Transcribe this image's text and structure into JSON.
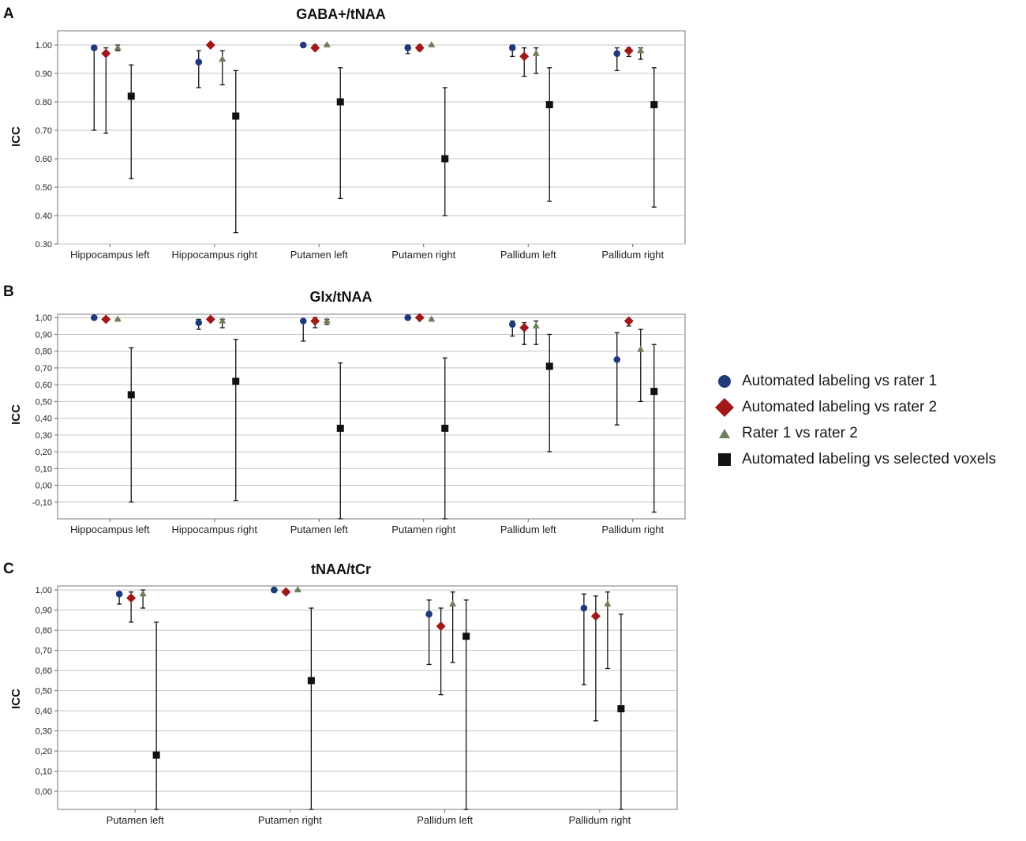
{
  "series_styles": [
    {
      "marker": "circle",
      "color": "#1f3a7a"
    },
    {
      "marker": "diamond",
      "color": "#a01818"
    },
    {
      "marker": "triangle",
      "color": "#6e8059"
    },
    {
      "marker": "square",
      "color": "#111111"
    }
  ],
  "legend": {
    "placement": "right",
    "items": [
      "Automated labeling vs rater 1",
      "Automated labeling vs rater 2",
      "Rater 1 vs rater 2",
      "Automated labeling vs selected voxels"
    ]
  },
  "chart_data": [
    {
      "panel_label": "A",
      "type": "scatter",
      "title": "GABA+/tNAA",
      "ylabel": "ICC",
      "ylim": [
        0.3,
        1.05
      ],
      "yticks": [
        "0.30",
        "0.40",
        "0.50",
        "0.60",
        "0.70",
        "0.80",
        "0.90",
        "1.00"
      ],
      "ytick_values": [
        0.3,
        0.4,
        0.5,
        0.6,
        0.7,
        0.8,
        0.9,
        1.0
      ],
      "grid": true,
      "categories": [
        "Hippocampus left",
        "Hippocampus right",
        "Putamen left",
        "Putamen right",
        "Pallidum left",
        "Pallidum right"
      ],
      "series": [
        {
          "values": [
            0.99,
            0.94,
            1.0,
            0.99,
            0.99,
            0.97
          ],
          "low": [
            0.7,
            0.85,
            1.0,
            0.97,
            0.96,
            0.91
          ],
          "high": [
            0.99,
            0.98,
            1.0,
            1.0,
            1.0,
            0.99
          ]
        },
        {
          "values": [
            0.97,
            1.0,
            0.99,
            0.99,
            0.96,
            0.98
          ],
          "low": [
            0.69,
            1.0,
            0.99,
            0.98,
            0.89,
            0.96
          ],
          "high": [
            0.99,
            1.0,
            1.0,
            1.0,
            0.99,
            0.99
          ]
        },
        {
          "values": [
            0.99,
            0.95,
            1.0,
            1.0,
            0.97,
            0.98
          ],
          "low": [
            0.98,
            0.86,
            1.0,
            1.0,
            0.9,
            0.95
          ],
          "high": [
            1.0,
            0.98,
            1.0,
            1.0,
            0.99,
            0.99
          ]
        },
        {
          "values": [
            0.82,
            0.75,
            0.8,
            0.6,
            0.79,
            0.79
          ],
          "low": [
            0.53,
            0.34,
            0.46,
            0.4,
            0.45,
            0.43
          ],
          "high": [
            0.93,
            0.91,
            0.92,
            0.85,
            0.92,
            0.92
          ]
        }
      ]
    },
    {
      "panel_label": "B",
      "type": "scatter",
      "title": "Glx/tNAA",
      "ylabel": "ICC",
      "ylim": [
        -0.2,
        1.02
      ],
      "yticks": [
        "-0,10",
        "0,00",
        "0,10",
        "0,20",
        "0,30",
        "0,40",
        "0,50",
        "0,60",
        "0,70",
        "0,80",
        "0,90",
        "1,00"
      ],
      "ytick_values": [
        -0.1,
        0.0,
        0.1,
        0.2,
        0.3,
        0.4,
        0.5,
        0.6,
        0.7,
        0.8,
        0.9,
        1.0
      ],
      "grid": true,
      "categories": [
        "Hippocampus left",
        "Hippocampus right",
        "Putamen left",
        "Putamen right",
        "Pallidum left",
        "Pallidum right"
      ],
      "series": [
        {
          "values": [
            1.0,
            0.97,
            0.98,
            1.0,
            0.96,
            0.75
          ],
          "low": [
            1.0,
            0.93,
            0.86,
            1.0,
            0.89,
            0.36
          ],
          "high": [
            1.0,
            0.99,
            0.99,
            1.0,
            0.98,
            0.91
          ]
        },
        {
          "values": [
            0.99,
            0.99,
            0.98,
            1.0,
            0.94,
            0.98
          ],
          "low": [
            0.99,
            0.99,
            0.94,
            1.0,
            0.84,
            0.95
          ],
          "high": [
            1.0,
            1.0,
            1.0,
            1.0,
            0.97,
            0.99
          ]
        },
        {
          "values": [
            0.99,
            0.98,
            0.98,
            0.99,
            0.95,
            0.81
          ],
          "low": [
            0.98,
            0.94,
            0.96,
            0.98,
            0.84,
            0.5
          ],
          "high": [
            0.99,
            0.99,
            0.99,
            0.99,
            0.98,
            0.93
          ]
        },
        {
          "values": [
            0.54,
            0.62,
            0.34,
            0.34,
            0.71,
            0.56
          ],
          "low": [
            -0.1,
            -0.09,
            -0.2,
            -0.2,
            0.2,
            -0.16
          ],
          "high": [
            0.82,
            0.87,
            0.73,
            0.76,
            0.9,
            0.84
          ]
        }
      ]
    },
    {
      "panel_label": "C",
      "type": "scatter",
      "title": "tNAA/tCr",
      "ylabel": "ICC",
      "ylim": [
        -0.09,
        1.02
      ],
      "yticks": [
        "0,00",
        "0,10",
        "0,20",
        "0,30",
        "0,40",
        "0,50",
        "0,60",
        "0,70",
        "0,80",
        "0,90",
        "1,00"
      ],
      "ytick_values": [
        0.0,
        0.1,
        0.2,
        0.3,
        0.4,
        0.5,
        0.6,
        0.7,
        0.8,
        0.9,
        1.0
      ],
      "grid": true,
      "categories": [
        "Putamen left",
        "Putamen right",
        "Pallidum left",
        "Pallidum right"
      ],
      "series": [
        {
          "values": [
            0.98,
            1.0,
            0.88,
            0.91
          ],
          "low": [
            0.93,
            0.99,
            0.63,
            0.53
          ],
          "high": [
            0.99,
            1.0,
            0.95,
            0.98
          ]
        },
        {
          "values": [
            0.96,
            0.99,
            0.82,
            0.87
          ],
          "low": [
            0.84,
            0.98,
            0.48,
            0.35
          ],
          "high": [
            0.99,
            1.0,
            0.91,
            0.97
          ]
        },
        {
          "values": [
            0.98,
            1.0,
            0.93,
            0.93
          ],
          "low": [
            0.91,
            1.0,
            0.64,
            0.61
          ],
          "high": [
            1.0,
            1.0,
            0.99,
            0.99
          ]
        },
        {
          "values": [
            0.18,
            0.55,
            0.77,
            0.41
          ],
          "low": [
            -0.09,
            -0.09,
            -0.09,
            -0.09
          ],
          "high": [
            0.84,
            0.91,
            0.95,
            0.88
          ]
        }
      ]
    }
  ]
}
